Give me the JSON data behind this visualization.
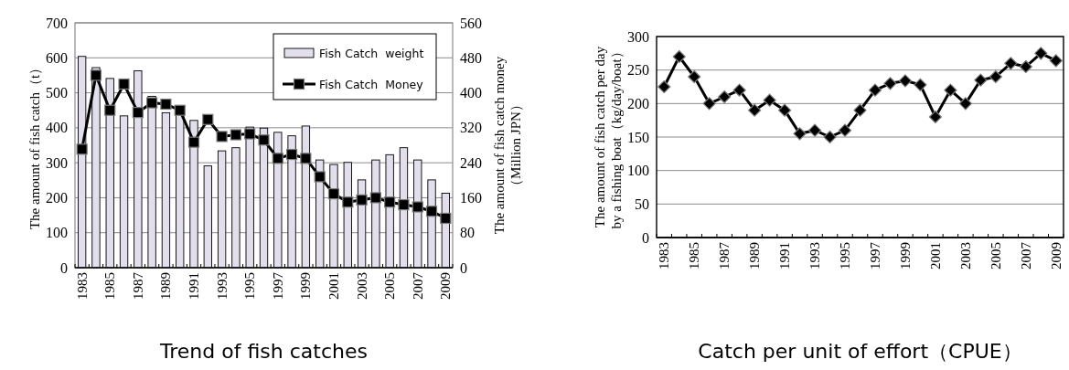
{
  "chart_data": [
    {
      "type": "bar",
      "title": "Trend of fish catches",
      "ylabel": "The amount of fish catch（t）",
      "y2label": "The amount of fish catch money\n（Million JPN）",
      "categories": [
        "1983",
        null,
        "1985",
        null,
        "1987",
        null,
        "1989",
        null,
        "1991",
        null,
        "1993",
        null,
        "1995",
        null,
        "1997",
        null,
        "1999",
        null,
        "2001",
        null,
        "2003",
        null,
        "2005",
        null,
        "2007",
        null,
        "2009"
      ],
      "series": [
        {
          "name": "Fish Catch  weight",
          "color": "#e2deec",
          "values": [
            604,
            572,
            541,
            434,
            563,
            490,
            443,
            440,
            421,
            291,
            334,
            343,
            402,
            399,
            387,
            377,
            405,
            308,
            295,
            301,
            251,
            308,
            323,
            343,
            308,
            251,
            213
          ]
        },
        {
          "name": "Fish Catch  Money",
          "type": "line",
          "axis": "y2",
          "color": "#000000",
          "marker": "square",
          "values": [
            271,
            440,
            360,
            420,
            355,
            377,
            374,
            360,
            287,
            339,
            300,
            304,
            306,
            292,
            250,
            259,
            250,
            208,
            169,
            150,
            155,
            160,
            150,
            144,
            139,
            129,
            113
          ]
        }
      ],
      "ylim": [
        0,
        700
      ],
      "yticks": [
        0,
        100,
        200,
        300,
        400,
        500,
        600,
        700
      ],
      "y2lim": [
        0,
        560
      ],
      "y2ticks": [
        0,
        80,
        160,
        240,
        320,
        400,
        480,
        560
      ],
      "grid": "y",
      "legend": "top right"
    },
    {
      "type": "line",
      "title": "Catch per unit of effort（CPUE）",
      "ylabel": "The amount of fish catch per day\nby a fishing boat（kg/day/boat）",
      "categories": [
        "1983",
        null,
        "1985",
        null,
        "1987",
        null,
        "1989",
        null,
        "1991",
        null,
        "1993",
        null,
        "1995",
        null,
        "1997",
        null,
        "1999",
        null,
        "2001",
        null,
        "2003",
        null,
        "2005",
        null,
        "2007",
        null,
        "2009"
      ],
      "series": [
        {
          "color": "#000000",
          "marker": "diamond",
          "values": [
            225,
            270,
            240,
            200,
            210,
            220,
            190,
            205,
            190,
            155,
            160,
            150,
            160,
            190,
            220,
            230,
            234,
            228,
            180,
            220,
            200,
            235,
            240,
            260,
            255,
            275,
            264
          ]
        }
      ],
      "ylim": [
        0,
        300
      ],
      "yticks": [
        0,
        50,
        100,
        150,
        200,
        250,
        300
      ],
      "grid": "y",
      "legend": false
    }
  ]
}
